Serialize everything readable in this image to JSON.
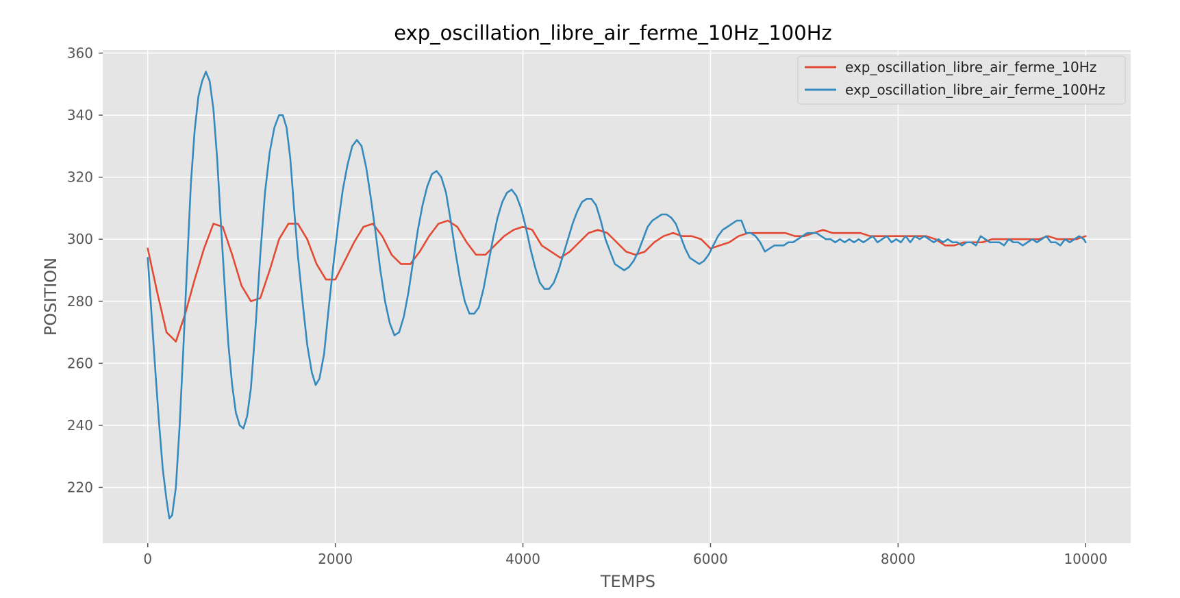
{
  "chart_data": {
    "type": "line",
    "title": "exp_oscillation_libre_air_ferme_10Hz_100Hz",
    "xlabel": "TEMPS",
    "ylabel": "POSITION",
    "xlim": [
      -480,
      10480
    ],
    "ylim": [
      202,
      361
    ],
    "xticks": [
      0,
      2000,
      4000,
      6000,
      8000,
      10000
    ],
    "yticks": [
      220,
      240,
      260,
      280,
      300,
      320,
      340,
      360
    ],
    "xtick_labels": [
      "0",
      "2000",
      "4000",
      "6000",
      "8000",
      "10000"
    ],
    "ytick_labels": [
      "220",
      "240",
      "260",
      "280",
      "300",
      "320",
      "340",
      "360"
    ],
    "grid": true,
    "legend_position": "top-right",
    "colors": {
      "background": "#e5e5e5",
      "grid": "#ffffff",
      "tick": "#555555"
    },
    "series": [
      {
        "name": "exp_oscillation_libre_air_ferme_10Hz",
        "color": "#e24a33",
        "points": [
          [
            0,
            297
          ],
          [
            100,
            283
          ],
          [
            200,
            270
          ],
          [
            300,
            267
          ],
          [
            400,
            276
          ],
          [
            500,
            287
          ],
          [
            600,
            297
          ],
          [
            700,
            305
          ],
          [
            800,
            304
          ],
          [
            900,
            295
          ],
          [
            1000,
            285
          ],
          [
            1100,
            280
          ],
          [
            1200,
            281
          ],
          [
            1300,
            290
          ],
          [
            1400,
            300
          ],
          [
            1500,
            305
          ],
          [
            1600,
            305
          ],
          [
            1700,
            300
          ],
          [
            1800,
            292
          ],
          [
            1900,
            287
          ],
          [
            2000,
            287
          ],
          [
            2100,
            293
          ],
          [
            2200,
            299
          ],
          [
            2300,
            304
          ],
          [
            2400,
            305
          ],
          [
            2500,
            301
          ],
          [
            2600,
            295
          ],
          [
            2700,
            292
          ],
          [
            2800,
            292
          ],
          [
            2900,
            296
          ],
          [
            3000,
            301
          ],
          [
            3100,
            305
          ],
          [
            3200,
            306
          ],
          [
            3300,
            304
          ],
          [
            3400,
            299
          ],
          [
            3500,
            295
          ],
          [
            3600,
            295
          ],
          [
            3700,
            298
          ],
          [
            3800,
            301
          ],
          [
            3900,
            303
          ],
          [
            4000,
            304
          ],
          [
            4100,
            303
          ],
          [
            4200,
            298
          ],
          [
            4300,
            296
          ],
          [
            4400,
            294
          ],
          [
            4500,
            296
          ],
          [
            4600,
            299
          ],
          [
            4700,
            302
          ],
          [
            4800,
            303
          ],
          [
            4900,
            302
          ],
          [
            5000,
            299
          ],
          [
            5100,
            296
          ],
          [
            5200,
            295
          ],
          [
            5300,
            296
          ],
          [
            5400,
            299
          ],
          [
            5500,
            301
          ],
          [
            5600,
            302
          ],
          [
            5700,
            301
          ],
          [
            5800,
            301
          ],
          [
            5900,
            300
          ],
          [
            6000,
            297
          ],
          [
            6100,
            298
          ],
          [
            6200,
            299
          ],
          [
            6300,
            301
          ],
          [
            6400,
            302
          ],
          [
            6500,
            302
          ],
          [
            6600,
            302
          ],
          [
            6700,
            302
          ],
          [
            6800,
            302
          ],
          [
            6900,
            301
          ],
          [
            7000,
            301
          ],
          [
            7100,
            302
          ],
          [
            7200,
            303
          ],
          [
            7300,
            302
          ],
          [
            7400,
            302
          ],
          [
            7500,
            302
          ],
          [
            7600,
            302
          ],
          [
            7700,
            301
          ],
          [
            7800,
            301
          ],
          [
            7900,
            301
          ],
          [
            8000,
            301
          ],
          [
            8100,
            301
          ],
          [
            8200,
            301
          ],
          [
            8300,
            301
          ],
          [
            8400,
            300
          ],
          [
            8500,
            298
          ],
          [
            8600,
            298
          ],
          [
            8700,
            299
          ],
          [
            8800,
            299
          ],
          [
            8900,
            299
          ],
          [
            9000,
            300
          ],
          [
            9100,
            300
          ],
          [
            9200,
            300
          ],
          [
            9300,
            300
          ],
          [
            9400,
            300
          ],
          [
            9500,
            300
          ],
          [
            9600,
            301
          ],
          [
            9700,
            300
          ],
          [
            9800,
            300
          ],
          [
            9900,
            300
          ],
          [
            10000,
            301
          ]
        ]
      },
      {
        "name": "exp_oscillation_libre_air_ferme_100Hz",
        "color": "#348abd",
        "points": [
          [
            0,
            294
          ],
          [
            40,
            276
          ],
          [
            80,
            258
          ],
          [
            120,
            241
          ],
          [
            160,
            226
          ],
          [
            200,
            216
          ],
          [
            230,
            210
          ],
          [
            260,
            211
          ],
          [
            300,
            220
          ],
          [
            340,
            240
          ],
          [
            380,
            265
          ],
          [
            420,
            292
          ],
          [
            460,
            318
          ],
          [
            500,
            335
          ],
          [
            540,
            346
          ],
          [
            580,
            351
          ],
          [
            620,
            354
          ],
          [
            660,
            351
          ],
          [
            700,
            342
          ],
          [
            740,
            326
          ],
          [
            780,
            305
          ],
          [
            820,
            285
          ],
          [
            860,
            266
          ],
          [
            900,
            253
          ],
          [
            940,
            244
          ],
          [
            980,
            240
          ],
          [
            1020,
            239
          ],
          [
            1060,
            243
          ],
          [
            1100,
            252
          ],
          [
            1150,
            272
          ],
          [
            1200,
            295
          ],
          [
            1250,
            315
          ],
          [
            1300,
            328
          ],
          [
            1350,
            336
          ],
          [
            1400,
            340
          ],
          [
            1440,
            340
          ],
          [
            1480,
            336
          ],
          [
            1520,
            326
          ],
          [
            1560,
            310
          ],
          [
            1600,
            295
          ],
          [
            1650,
            280
          ],
          [
            1700,
            266
          ],
          [
            1750,
            257
          ],
          [
            1790,
            253
          ],
          [
            1830,
            255
          ],
          [
            1880,
            263
          ],
          [
            1930,
            278
          ],
          [
            1980,
            292
          ],
          [
            2030,
            305
          ],
          [
            2080,
            316
          ],
          [
            2130,
            324
          ],
          [
            2180,
            330
          ],
          [
            2230,
            332
          ],
          [
            2280,
            330
          ],
          [
            2330,
            323
          ],
          [
            2380,
            313
          ],
          [
            2430,
            302
          ],
          [
            2480,
            290
          ],
          [
            2530,
            280
          ],
          [
            2580,
            273
          ],
          [
            2630,
            269
          ],
          [
            2680,
            270
          ],
          [
            2730,
            275
          ],
          [
            2780,
            283
          ],
          [
            2830,
            293
          ],
          [
            2880,
            303
          ],
          [
            2930,
            311
          ],
          [
            2980,
            317
          ],
          [
            3030,
            321
          ],
          [
            3080,
            322
          ],
          [
            3130,
            320
          ],
          [
            3180,
            315
          ],
          [
            3230,
            306
          ],
          [
            3280,
            296
          ],
          [
            3330,
            287
          ],
          [
            3380,
            280
          ],
          [
            3430,
            276
          ],
          [
            3480,
            276
          ],
          [
            3530,
            278
          ],
          [
            3580,
            284
          ],
          [
            3630,
            292
          ],
          [
            3680,
            300
          ],
          [
            3730,
            307
          ],
          [
            3780,
            312
          ],
          [
            3830,
            315
          ],
          [
            3880,
            316
          ],
          [
            3930,
            314
          ],
          [
            3980,
            310
          ],
          [
            4030,
            304
          ],
          [
            4080,
            297
          ],
          [
            4130,
            291
          ],
          [
            4180,
            286
          ],
          [
            4230,
            284
          ],
          [
            4280,
            284
          ],
          [
            4330,
            286
          ],
          [
            4380,
            290
          ],
          [
            4430,
            295
          ],
          [
            4480,
            300
          ],
          [
            4530,
            305
          ],
          [
            4580,
            309
          ],
          [
            4630,
            312
          ],
          [
            4680,
            313
          ],
          [
            4730,
            313
          ],
          [
            4780,
            311
          ],
          [
            4830,
            306
          ],
          [
            4880,
            300
          ],
          [
            4930,
            296
          ],
          [
            4980,
            292
          ],
          [
            5030,
            291
          ],
          [
            5080,
            290
          ],
          [
            5130,
            291
          ],
          [
            5180,
            293
          ],
          [
            5230,
            296
          ],
          [
            5280,
            300
          ],
          [
            5330,
            304
          ],
          [
            5380,
            306
          ],
          [
            5430,
            307
          ],
          [
            5480,
            308
          ],
          [
            5530,
            308
          ],
          [
            5580,
            307
          ],
          [
            5630,
            305
          ],
          [
            5680,
            301
          ],
          [
            5730,
            297
          ],
          [
            5780,
            294
          ],
          [
            5830,
            293
          ],
          [
            5880,
            292
          ],
          [
            5930,
            293
          ],
          [
            5980,
            295
          ],
          [
            6030,
            298
          ],
          [
            6080,
            301
          ],
          [
            6130,
            303
          ],
          [
            6180,
            304
          ],
          [
            6230,
            305
          ],
          [
            6280,
            306
          ],
          [
            6330,
            306
          ],
          [
            6380,
            302
          ],
          [
            6430,
            302
          ],
          [
            6480,
            301
          ],
          [
            6530,
            299
          ],
          [
            6580,
            296
          ],
          [
            6630,
            297
          ],
          [
            6680,
            298
          ],
          [
            6730,
            298
          ],
          [
            6780,
            298
          ],
          [
            6830,
            299
          ],
          [
            6880,
            299
          ],
          [
            6930,
            300
          ],
          [
            6980,
            301
          ],
          [
            7030,
            302
          ],
          [
            7080,
            302
          ],
          [
            7130,
            302
          ],
          [
            7180,
            301
          ],
          [
            7230,
            300
          ],
          [
            7280,
            300
          ],
          [
            7330,
            299
          ],
          [
            7380,
            300
          ],
          [
            7430,
            299
          ],
          [
            7480,
            300
          ],
          [
            7530,
            299
          ],
          [
            7580,
            300
          ],
          [
            7630,
            299
          ],
          [
            7680,
            300
          ],
          [
            7730,
            301
          ],
          [
            7780,
            299
          ],
          [
            7830,
            300
          ],
          [
            7880,
            301
          ],
          [
            7930,
            299
          ],
          [
            7980,
            300
          ],
          [
            8030,
            299
          ],
          [
            8080,
            301
          ],
          [
            8130,
            299
          ],
          [
            8180,
            301
          ],
          [
            8230,
            300
          ],
          [
            8280,
            301
          ],
          [
            8330,
            300
          ],
          [
            8380,
            299
          ],
          [
            8430,
            300
          ],
          [
            8480,
            299
          ],
          [
            8530,
            300
          ],
          [
            8580,
            299
          ],
          [
            8630,
            299
          ],
          [
            8680,
            298
          ],
          [
            8730,
            299
          ],
          [
            8780,
            299
          ],
          [
            8830,
            298
          ],
          [
            8880,
            301
          ],
          [
            8930,
            300
          ],
          [
            8980,
            299
          ],
          [
            9030,
            299
          ],
          [
            9080,
            299
          ],
          [
            9130,
            298
          ],
          [
            9180,
            300
          ],
          [
            9230,
            299
          ],
          [
            9280,
            299
          ],
          [
            9330,
            298
          ],
          [
            9380,
            299
          ],
          [
            9430,
            300
          ],
          [
            9480,
            299
          ],
          [
            9530,
            300
          ],
          [
            9580,
            301
          ],
          [
            9630,
            299
          ],
          [
            9680,
            299
          ],
          [
            9730,
            298
          ],
          [
            9780,
            300
          ],
          [
            9830,
            299
          ],
          [
            9880,
            300
          ],
          [
            9930,
            301
          ],
          [
            9980,
            300
          ],
          [
            10000,
            299
          ]
        ]
      }
    ]
  }
}
